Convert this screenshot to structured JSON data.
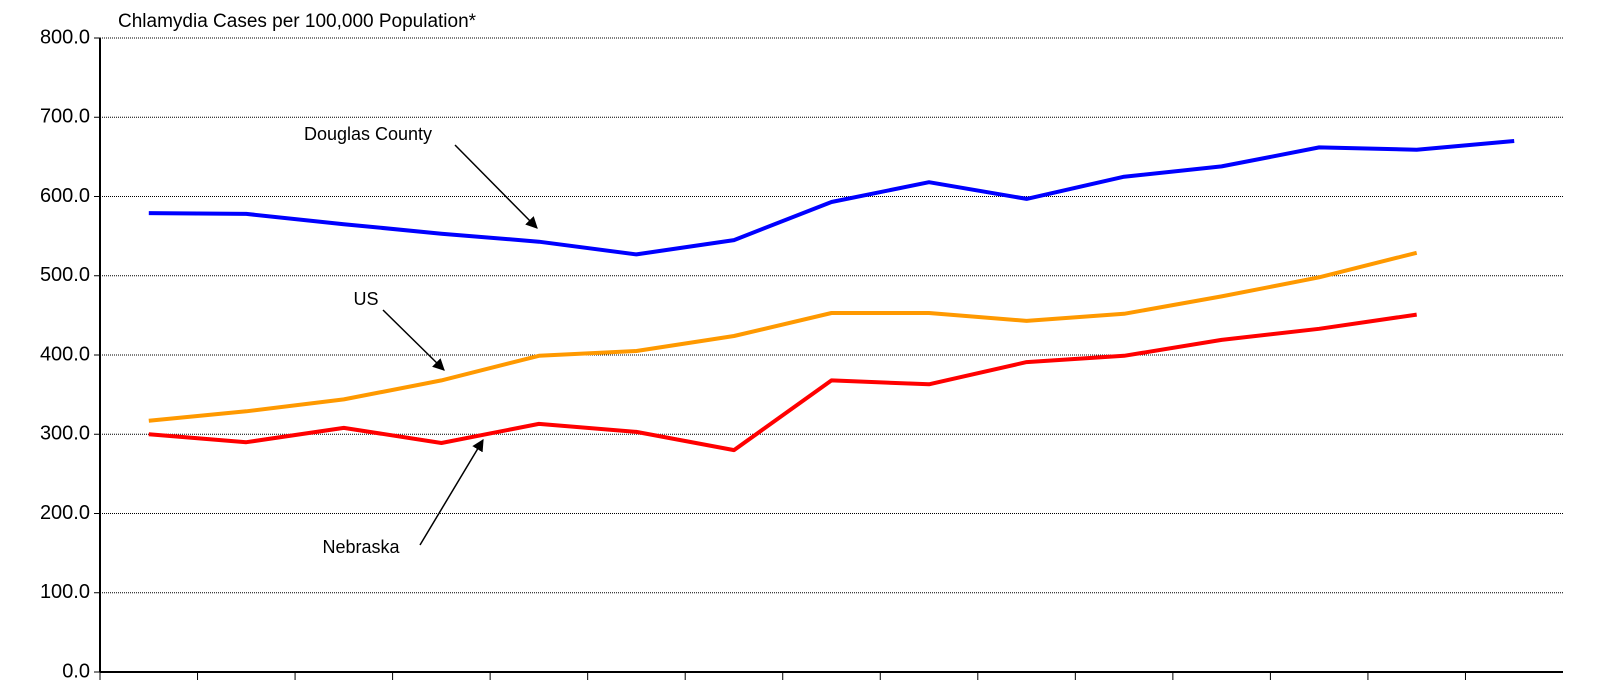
{
  "chart_data": {
    "type": "line",
    "title": "Chlamydia Cases per 100,000 Population*",
    "categories": [
      null,
      null,
      null,
      null,
      null,
      null,
      null,
      null,
      null,
      null,
      null,
      null,
      null,
      null,
      null
    ],
    "series": [
      {
        "name": "Douglas County",
        "color": "#0000ff",
        "values": [
          579,
          578,
          565,
          553,
          543,
          527,
          545,
          593,
          618,
          597,
          625,
          638,
          662,
          659,
          670
        ]
      },
      {
        "name": "US",
        "color": "#ff9900",
        "values": [
          317,
          329,
          344,
          368,
          399,
          405,
          424,
          453,
          453,
          443,
          452,
          474,
          498,
          529,
          null
        ]
      },
      {
        "name": "Nebraska",
        "color": "#ff0000",
        "values": [
          300,
          290,
          308,
          289,
          313,
          303,
          280,
          368,
          363,
          391,
          399,
          419,
          433,
          451,
          null
        ]
      }
    ],
    "ylim": [
      0,
      800
    ],
    "yticks": [
      {
        "value": 0,
        "label": "0.0"
      },
      {
        "value": 100,
        "label": "100.0"
      },
      {
        "value": 200,
        "label": "200.0"
      },
      {
        "value": 300,
        "label": "300.0"
      },
      {
        "value": 400,
        "label": "400.0"
      },
      {
        "value": 500,
        "label": "500.0"
      },
      {
        "value": 600,
        "label": "600.0"
      },
      {
        "value": 700,
        "label": "700.0"
      },
      {
        "value": 800,
        "label": "800.0"
      }
    ],
    "grid": true
  }
}
